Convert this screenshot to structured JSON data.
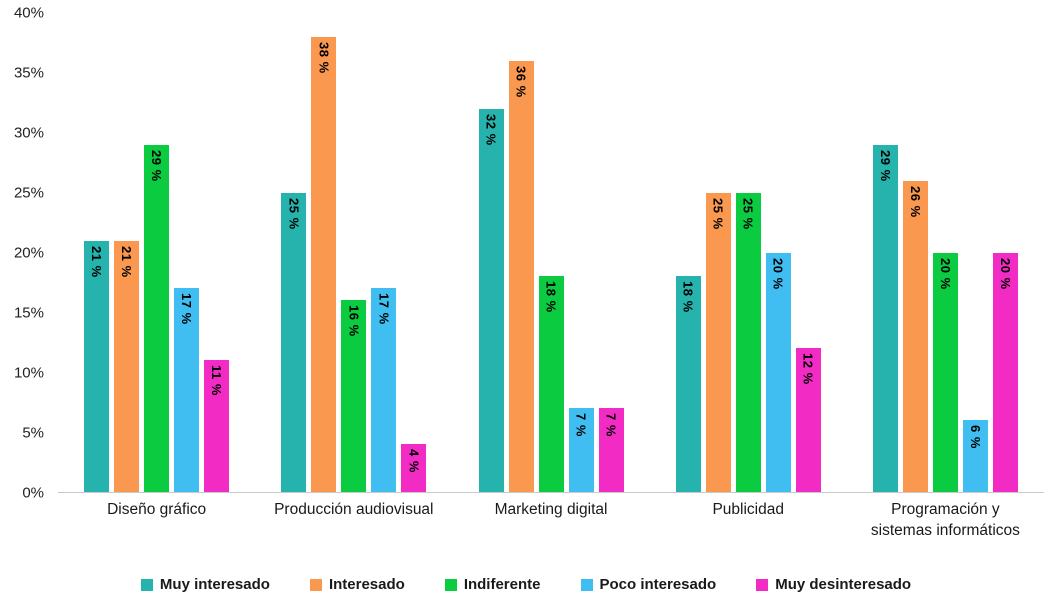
{
  "chart_data": {
    "type": "bar",
    "categories": [
      "Diseño gráfico",
      "Producción audiovisual",
      "Marketing digital",
      "Publicidad",
      "Programación y\nsistemas informáticos"
    ],
    "series": [
      {
        "name": "Muy interesado",
        "color": "#26B3AE",
        "values": [
          21,
          25,
          32,
          18,
          29
        ]
      },
      {
        "name": "Interesado",
        "color": "#FA9850",
        "values": [
          21,
          38,
          36,
          25,
          26
        ]
      },
      {
        "name": "Indiferente",
        "color": "#0BCB40",
        "values": [
          29,
          16,
          18,
          25,
          20
        ]
      },
      {
        "name": "Poco interesado",
        "color": "#41BEF1",
        "values": [
          17,
          17,
          7,
          20,
          6
        ]
      },
      {
        "name": "Muy desinteresado",
        "color": "#F22BC5",
        "values": [
          11,
          4,
          7,
          12,
          20
        ]
      }
    ],
    "label_suffix": " %",
    "title": "",
    "xlabel": "",
    "ylabel": "",
    "ylim": [
      0,
      40
    ],
    "ytick_step": 5,
    "ytick_labels": [
      "0%",
      "5%",
      "10%",
      "15%",
      "20%",
      "25%",
      "30%",
      "35%",
      "40%"
    ],
    "grid": false,
    "legend_position": "bottom"
  }
}
